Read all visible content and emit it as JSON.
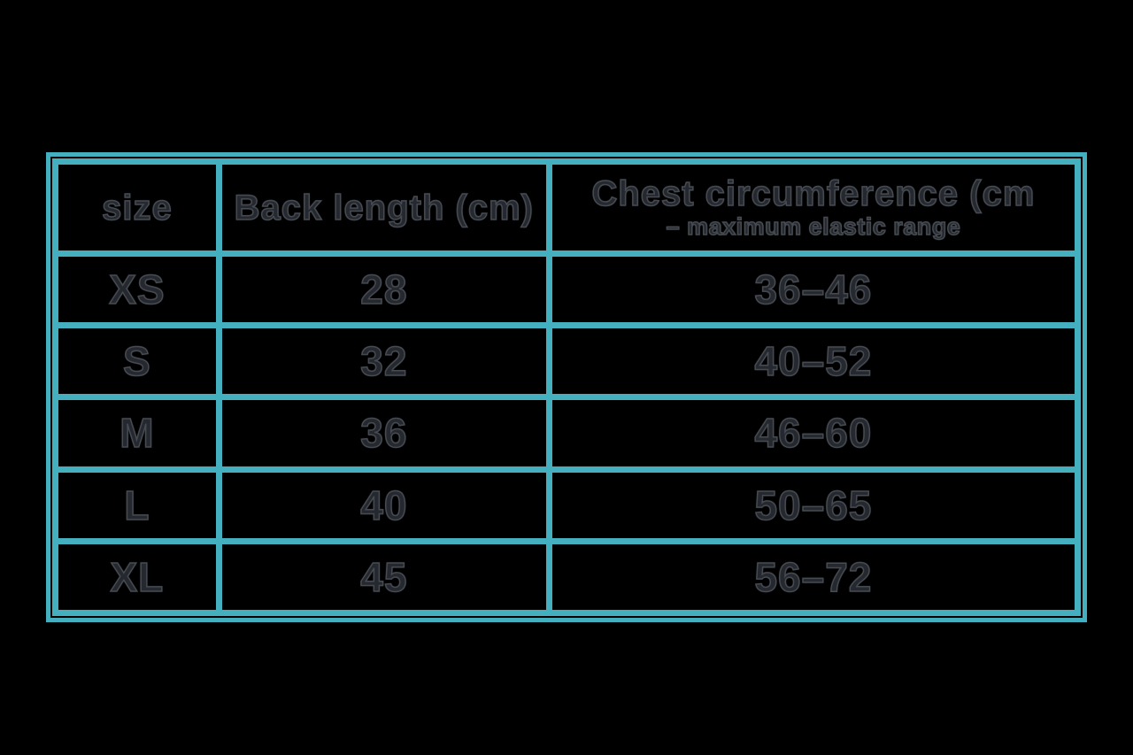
{
  "colors": {
    "background": "#000000",
    "table_border": "#44afbe",
    "table_border_highlight": "#66c6d1",
    "text_fill": "#25282e",
    "text_outline": "#464b52"
  },
  "table": {
    "headers": {
      "size": "size",
      "back_length": "Back length (cm)",
      "chest_line1": "Chest circumference (cm",
      "chest_line2": "– maximum elastic range"
    },
    "rows": [
      {
        "size": "XS",
        "back_length": "28",
        "chest": "36–46"
      },
      {
        "size": "S",
        "back_length": "32",
        "chest": "40–52"
      },
      {
        "size": "M",
        "back_length": "36",
        "chest": "46–60"
      },
      {
        "size": "L",
        "back_length": "40",
        "chest": "50–65"
      },
      {
        "size": "XL",
        "back_length": "45",
        "chest": "56–72"
      }
    ]
  },
  "chart_data": {
    "type": "table",
    "columns": [
      "size",
      "Back length (cm)",
      "Chest circumference (cm – maximum elastic range"
    ],
    "rows": [
      [
        "XS",
        "28",
        "36–46"
      ],
      [
        "S",
        "32",
        "40–52"
      ],
      [
        "M",
        "36",
        "46–60"
      ],
      [
        "L",
        "40",
        "50–65"
      ],
      [
        "XL",
        "45",
        "56–72"
      ]
    ]
  }
}
